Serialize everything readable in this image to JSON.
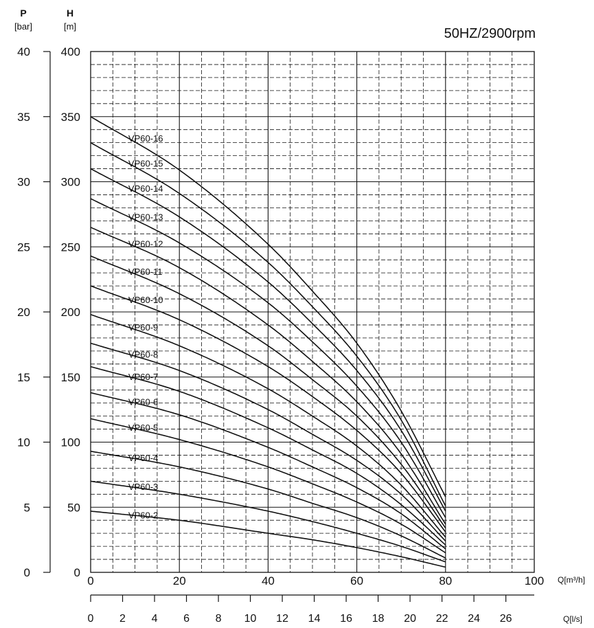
{
  "chart_data": {
    "type": "line",
    "title": "50HZ/2900rpm",
    "axes": {
      "p": {
        "name": "P",
        "unit": "[bar]",
        "ticks": [
          "0",
          "5",
          "10",
          "15",
          "20",
          "25",
          "30",
          "35",
          "40"
        ],
        "lim": [
          0,
          40
        ]
      },
      "h": {
        "name": "H",
        "unit": "[m]",
        "ticks": [
          "0",
          "50",
          "100",
          "150",
          "200",
          "250",
          "300",
          "350",
          "400"
        ],
        "lim": [
          0,
          400
        ]
      },
      "q_m3h": {
        "unit": "Q[m³/h]",
        "ticks": [
          "0",
          "20",
          "40",
          "60",
          "80",
          "100"
        ],
        "lim": [
          0,
          100
        ]
      },
      "q_ls": {
        "unit": "Q[l/s]",
        "ticks": [
          "0",
          "2",
          "4",
          "6",
          "8",
          "10",
          "12",
          "14",
          "16",
          "18",
          "20",
          "22",
          "24",
          "26"
        ]
      }
    },
    "grid": true,
    "x": [
      0,
      20,
      40,
      50,
      60,
      70,
      80
    ],
    "series": [
      {
        "name": "VP60-2",
        "values": [
          47,
          40,
          30,
          25,
          19,
          12,
          4
        ]
      },
      {
        "name": "VP60-3",
        "values": [
          70,
          60,
          47,
          39,
          30,
          20,
          8
        ]
      },
      {
        "name": "VP60-4",
        "values": [
          93,
          81,
          64,
          53,
          42,
          28,
          11
        ]
      },
      {
        "name": "VP60-5",
        "values": [
          118,
          102,
          81,
          68,
          54,
          37,
          15
        ]
      },
      {
        "name": "VP60-6",
        "values": [
          138,
          121,
          96,
          81,
          65,
          45,
          18
        ]
      },
      {
        "name": "VP60-7",
        "values": [
          158,
          139,
          111,
          94,
          76,
          52,
          21
        ]
      },
      {
        "name": "VP60-8",
        "values": [
          176,
          155,
          125,
          106,
          86,
          60,
          24
        ]
      },
      {
        "name": "VP60-9",
        "values": [
          198,
          174,
          141,
          120,
          97,
          67,
          27
        ]
      },
      {
        "name": "VP60-10",
        "values": [
          220,
          194,
          158,
          135,
          109,
          76,
          31
        ]
      },
      {
        "name": "VP60-11",
        "values": [
          243,
          214,
          174,
          148,
          120,
          83,
          34
        ]
      },
      {
        "name": "VP60-12",
        "values": [
          265,
          234,
          190,
          162,
          131,
          91,
          37
        ]
      },
      {
        "name": "VP60-13",
        "values": [
          287,
          253,
          207,
          177,
          143,
          100,
          42
        ]
      },
      {
        "name": "VP60-14",
        "values": [
          310,
          273,
          223,
          191,
          155,
          109,
          47
        ]
      },
      {
        "name": "VP60-15",
        "values": [
          330,
          291,
          238,
          204,
          166,
          117,
          51
        ]
      },
      {
        "name": "VP60-16",
        "values": [
          350,
          309,
          252,
          216,
          176,
          124,
          58
        ]
      }
    ],
    "label_x": 8.5,
    "line_color": "#111111",
    "grid_color": "#111111"
  }
}
